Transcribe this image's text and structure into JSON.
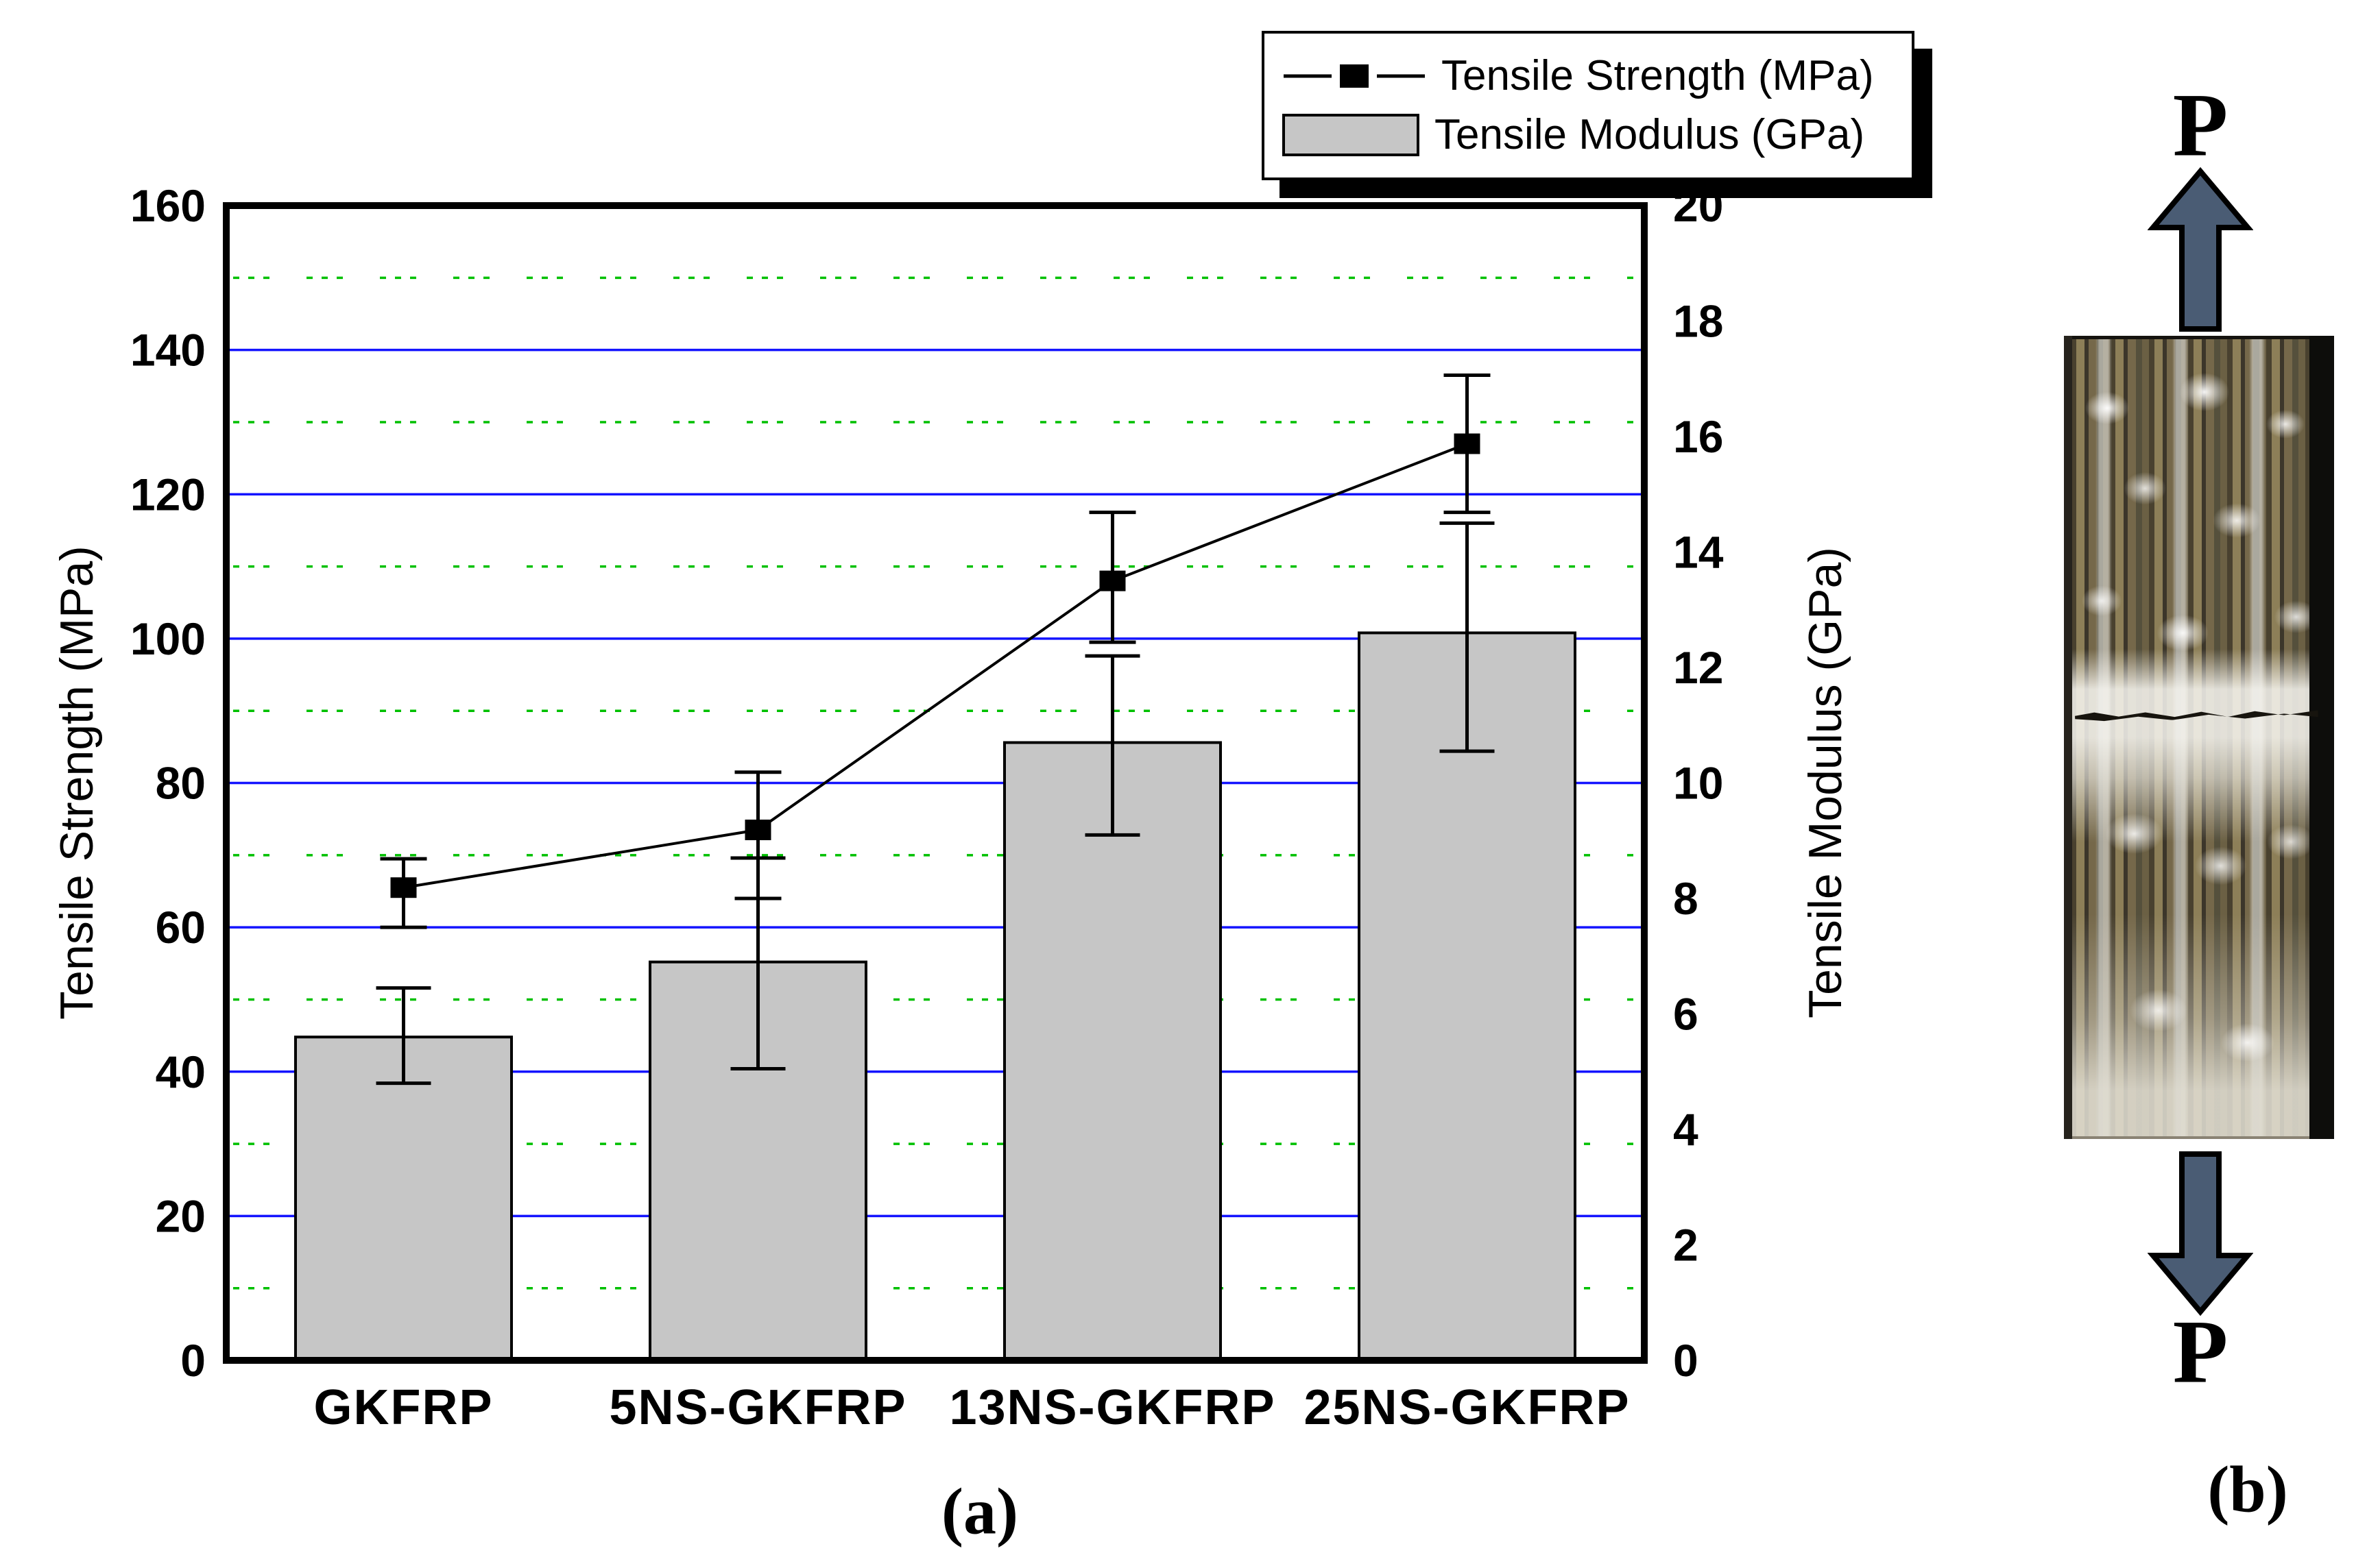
{
  "figure": {
    "caption_a": "(a)",
    "caption_b": "(b)",
    "load_label_top": "P",
    "load_label_bottom": "P",
    "arrow_color": "#4a5c74"
  },
  "chart_data": {
    "type": "bar",
    "categories": [
      "GKFRP",
      "5NS-GKFRP",
      "13NS-GKFRP",
      "25NS-GKFRP"
    ],
    "series": [
      {
        "name": "Tensile Strength (MPa)",
        "type": "line",
        "axis": "left",
        "marker": "square",
        "color": "#000000",
        "values": [
          65.5,
          73.5,
          108,
          127
        ],
        "error_up": [
          4.0,
          8.0,
          9.5,
          9.5
        ],
        "error_down": [
          5.5,
          9.5,
          8.5,
          9.5
        ]
      },
      {
        "name": "Tensile Modulus (GPa)",
        "type": "bar",
        "axis": "right",
        "color": "#c6c6c6",
        "values": [
          5.6,
          6.9,
          10.7,
          12.6
        ],
        "error_up": [
          0.85,
          1.8,
          1.5,
          1.9
        ],
        "error_down": [
          0.8,
          1.85,
          1.6,
          2.05
        ]
      }
    ],
    "left_axis": {
      "label": "Tensile Strength (MPa)",
      "min": 0,
      "max": 160,
      "tick_step": 20,
      "ticks": [
        0,
        20,
        40,
        60,
        80,
        100,
        120,
        140,
        160
      ]
    },
    "right_axis": {
      "label": "Tensile Modulus (GPa)",
      "min": 0,
      "max": 20,
      "tick_step": 2,
      "ticks": [
        0,
        2,
        4,
        6,
        8,
        10,
        12,
        14,
        16,
        18,
        20
      ]
    },
    "grid": {
      "major_color": "#1414ff",
      "minor_color": "#00c000",
      "minor_step_left": 10,
      "legend_position": "top-right"
    },
    "legend": [
      "Tensile Strength (MPa)",
      "Tensile Modulus (GPa)"
    ]
  }
}
